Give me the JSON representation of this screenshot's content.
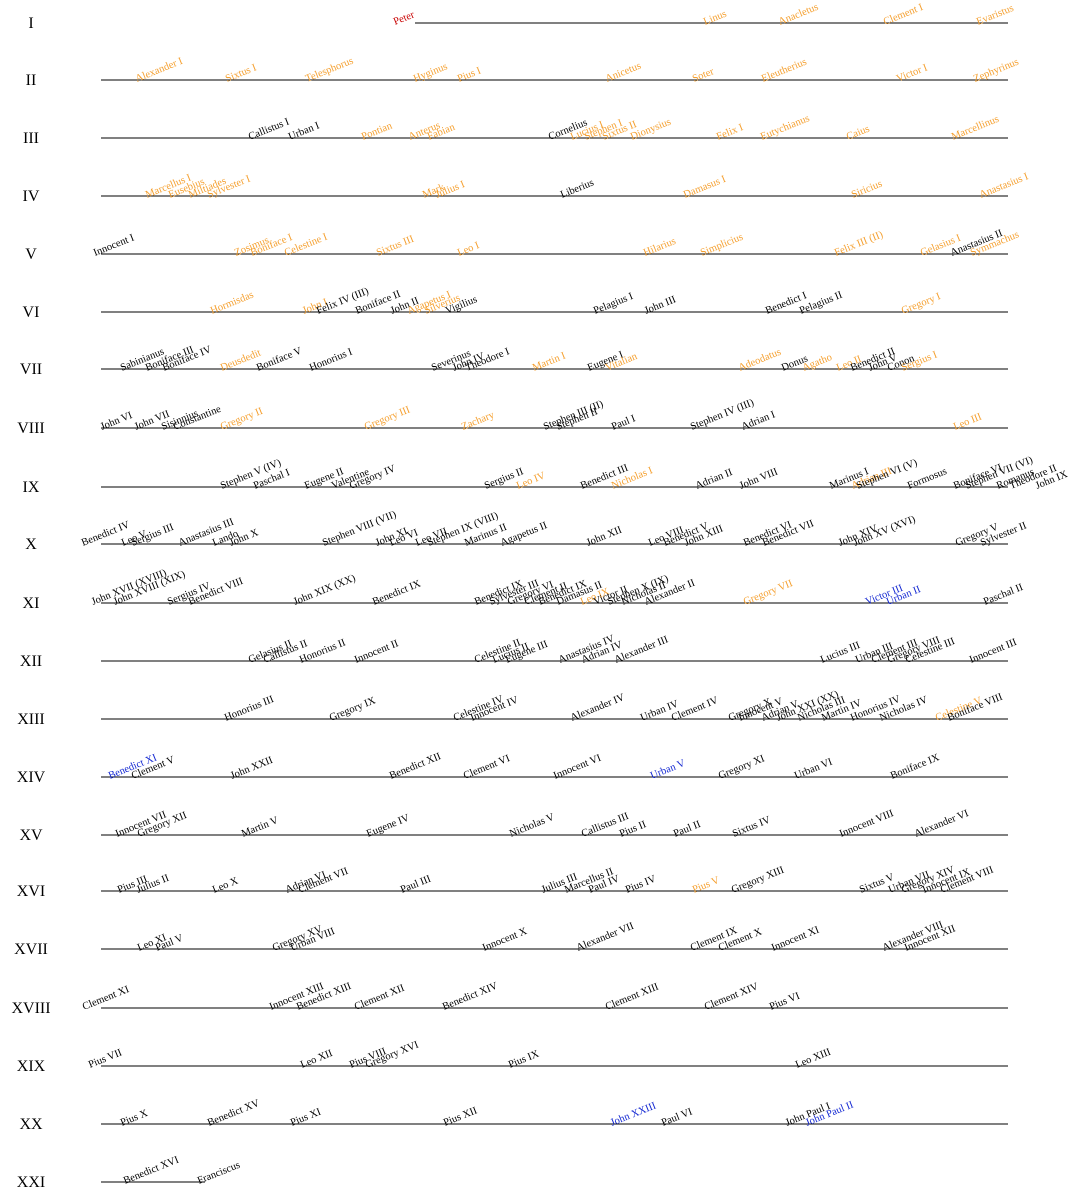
{
  "colors": {
    "default": "#000000",
    "saint": "#f5a030",
    "blessed": "#1428d2",
    "first": "#c80000"
  },
  "rows": [
    {
      "label": "I",
      "popes": [
        [
          "Peter",
          "first"
        ],
        [
          "Linus",
          "saint"
        ],
        [
          "Anacletus",
          "saint"
        ],
        [
          "Clement I",
          "saint"
        ],
        [
          "Evaristus",
          "saint"
        ]
      ]
    },
    {
      "label": "II",
      "popes": [
        [
          "Alexander I",
          "saint"
        ],
        [
          "Sixtus I",
          "saint"
        ],
        [
          "Telesphorus",
          "saint"
        ],
        [
          "Hyginus",
          "saint"
        ],
        [
          "Pius I",
          "saint"
        ],
        [
          "Anicetus",
          "saint"
        ],
        [
          "Soter",
          "saint"
        ],
        [
          "Eleutherius",
          "saint"
        ],
        [
          "Victor I",
          "saint"
        ],
        [
          "Zephyrinus",
          "saint"
        ]
      ]
    },
    {
      "label": "III",
      "popes": [
        [
          "Callistus I",
          "default"
        ],
        [
          "Urban I",
          "default"
        ],
        [
          "Pontian",
          "saint"
        ],
        [
          "Anterus",
          "saint"
        ],
        [
          "Fabian",
          "saint"
        ],
        [
          "Cornelius",
          "default"
        ],
        [
          "Lucius I",
          "saint"
        ],
        [
          "Stephen I",
          "saint"
        ],
        [
          "Sixtus II",
          "saint"
        ],
        [
          "Dionysius",
          "saint"
        ],
        [
          "Felix I",
          "saint"
        ],
        [
          "Eutychianus",
          "saint"
        ],
        [
          "Caius",
          "saint"
        ],
        [
          "Marcellinus",
          "saint"
        ]
      ]
    },
    {
      "label": "IV",
      "popes": [
        [
          "Marcellus I",
          "saint"
        ],
        [
          "Eusebius",
          "saint"
        ],
        [
          "Miltiades",
          "saint"
        ],
        [
          "Sylvester I",
          "saint"
        ],
        [
          "Mark",
          "saint"
        ],
        [
          "Julius I",
          "saint"
        ],
        [
          "Liberius",
          "default"
        ],
        [
          "Damasus I",
          "saint"
        ],
        [
          "Siricius",
          "saint"
        ],
        [
          "Anastasius I",
          "saint"
        ]
      ]
    },
    {
      "label": "V",
      "popes": [
        [
          "Innocent I",
          "default"
        ],
        [
          "Zosimus",
          "saint"
        ],
        [
          "Boniface I",
          "saint"
        ],
        [
          "Celestine I",
          "saint"
        ],
        [
          "Sixtus III",
          "saint"
        ],
        [
          "Leo I",
          "saint"
        ],
        [
          "Hilarius",
          "saint"
        ],
        [
          "Simplicius",
          "saint"
        ],
        [
          "Felix III (II)",
          "saint"
        ],
        [
          "Gelasius I",
          "saint"
        ],
        [
          "Anastasius II",
          "default"
        ],
        [
          "Symmachus",
          "saint"
        ]
      ]
    },
    {
      "label": "VI",
      "popes": [
        [
          "Hormisdas",
          "saint"
        ],
        [
          "John I",
          "saint"
        ],
        [
          "Felix IV (III)",
          "default"
        ],
        [
          "Boniface II",
          "default"
        ],
        [
          "John II",
          "default"
        ],
        [
          "Agapetus I",
          "saint"
        ],
        [
          "Silverius",
          "saint"
        ],
        [
          "Vigilius",
          "default"
        ],
        [
          "Pelagius I",
          "default"
        ],
        [
          "John III",
          "default"
        ],
        [
          "Benedict I",
          "default"
        ],
        [
          "Pelagius II",
          "default"
        ],
        [
          "Gregory I",
          "saint"
        ]
      ]
    },
    {
      "label": "VII",
      "popes": [
        [
          "Sabinianus",
          "default"
        ],
        [
          "Boniface III",
          "default"
        ],
        [
          "Boniface IV",
          "default"
        ],
        [
          "Deusdedit",
          "saint"
        ],
        [
          "Boniface V",
          "default"
        ],
        [
          "Honorius I",
          "default"
        ],
        [
          "Severinus",
          "default"
        ],
        [
          "John IV",
          "default"
        ],
        [
          "Theodore I",
          "default"
        ],
        [
          "Martin I",
          "saint"
        ],
        [
          "Eugene I",
          "default"
        ],
        [
          "Vitalian",
          "saint"
        ],
        [
          "Adeodatus",
          "saint"
        ],
        [
          "Donus",
          "default"
        ],
        [
          "Agatho",
          "saint"
        ],
        [
          "Leo II",
          "saint"
        ],
        [
          "Benedict II",
          "default"
        ],
        [
          "John V",
          "default"
        ],
        [
          "Conon",
          "default"
        ],
        [
          "Sergius I",
          "saint"
        ]
      ]
    },
    {
      "label": "VIII",
      "popes": [
        [
          "John VI",
          "default"
        ],
        [
          "John VII",
          "default"
        ],
        [
          "Sisinnius",
          "default"
        ],
        [
          "Constantine",
          "default"
        ],
        [
          "Gregory II",
          "saint"
        ],
        [
          "Gregory III",
          "saint"
        ],
        [
          "Zachary",
          "saint"
        ],
        [
          "Stephen III (II)",
          "default"
        ],
        [
          "Stephen II",
          "default"
        ],
        [
          "Paul I",
          "default"
        ],
        [
          "Stephen IV (III)",
          "default"
        ],
        [
          "Adrian I",
          "default"
        ],
        [
          "Leo III",
          "saint"
        ]
      ]
    },
    {
      "label": "IX",
      "popes": [
        [
          "Stephen V (IV)",
          "default"
        ],
        [
          "Paschal I",
          "default"
        ],
        [
          "Eugene II",
          "default"
        ],
        [
          "Valentine",
          "default"
        ],
        [
          "Gregory IV",
          "default"
        ],
        [
          "Sergius II",
          "default"
        ],
        [
          "Leo IV",
          "saint"
        ],
        [
          "Benedict III",
          "default"
        ],
        [
          "Nicholas I",
          "saint"
        ],
        [
          "Adrian II",
          "default"
        ],
        [
          "John VIII",
          "default"
        ],
        [
          "Marinus I",
          "default"
        ],
        [
          "Adrian III",
          "saint"
        ],
        [
          "Stephen VI (V)",
          "default"
        ],
        [
          "Formosus",
          "default"
        ],
        [
          "Boniface VI",
          "default"
        ],
        [
          "Stephen VII (VI)",
          "default"
        ],
        [
          "Romanus",
          "default"
        ],
        [
          "Theodore II",
          "default"
        ],
        [
          "John IX",
          "default"
        ]
      ]
    },
    {
      "label": "X",
      "popes": [
        [
          "Benedict IV",
          "default"
        ],
        [
          "Leo V",
          "default"
        ],
        [
          "Sergius III",
          "default"
        ],
        [
          "Anastasius III",
          "default"
        ],
        [
          "Lando",
          "default"
        ],
        [
          "John X",
          "default"
        ],
        [
          "Stephen VIII (VII)",
          "default"
        ],
        [
          "Leo VI",
          "default"
        ],
        [
          "John XI",
          "default"
        ],
        [
          "Leo VII",
          "default"
        ],
        [
          "Stephen IX (VIII)",
          "default"
        ],
        [
          "Marinus II",
          "default"
        ],
        [
          "Agapetus II",
          "default"
        ],
        [
          "John XII",
          "default"
        ],
        [
          "Leo VIII",
          "default"
        ],
        [
          "Benedict V",
          "default"
        ],
        [
          "John XIII",
          "default"
        ],
        [
          "Benedict VI",
          "default"
        ],
        [
          "Benedict VII",
          "default"
        ],
        [
          "John XIV",
          "default"
        ],
        [
          "John XV (XVI)",
          "default"
        ],
        [
          "Gregory V",
          "default"
        ],
        [
          "Sylvester II",
          "default"
        ]
      ]
    },
    {
      "label": "XI",
      "popes": [
        [
          "John XVII (XVIII)",
          "default"
        ],
        [
          "John XVIII (XIX)",
          "default"
        ],
        [
          "Sergius IV",
          "default"
        ],
        [
          "Benedict VIII",
          "default"
        ],
        [
          "John XIX (XX)",
          "default"
        ],
        [
          "Benedict IX",
          "default"
        ],
        [
          "Benedict IX",
          "default"
        ],
        [
          "Sylvester III",
          "default"
        ],
        [
          "Gregory VI",
          "default"
        ],
        [
          "Clement II",
          "default"
        ],
        [
          "Benedict IX",
          "default"
        ],
        [
          "Damasus II",
          "default"
        ],
        [
          "Leo IX",
          "saint"
        ],
        [
          "Victor II",
          "default"
        ],
        [
          "Stephen X (IX)",
          "default"
        ],
        [
          "Nicholas II",
          "default"
        ],
        [
          "Alexander II",
          "default"
        ],
        [
          "Gregory VII",
          "saint"
        ],
        [
          "Victor III",
          "blessed"
        ],
        [
          "Urban II",
          "blessed"
        ],
        [
          "Paschal II",
          "default"
        ]
      ]
    },
    {
      "label": "XII",
      "popes": [
        [
          "Gelasius II",
          "default"
        ],
        [
          "Callistus II",
          "default"
        ],
        [
          "Honorius II",
          "default"
        ],
        [
          "Innocent II",
          "default"
        ],
        [
          "Celestine II",
          "default"
        ],
        [
          "Lucius II",
          "default"
        ],
        [
          "Eugene III",
          "default"
        ],
        [
          "Anastasius IV",
          "default"
        ],
        [
          "Adrian IV",
          "default"
        ],
        [
          "Alexander III",
          "default"
        ],
        [
          "Lucius III",
          "default"
        ],
        [
          "Urban III",
          "default"
        ],
        [
          "Clement III",
          "default"
        ],
        [
          "Gregory VIII",
          "default"
        ],
        [
          "Celestine III",
          "default"
        ],
        [
          "Innocent III",
          "default"
        ]
      ]
    },
    {
      "label": "XIII",
      "popes": [
        [
          "Honorius III",
          "default"
        ],
        [
          "Gregory IX",
          "default"
        ],
        [
          "Celestine IV",
          "default"
        ],
        [
          "Innocent IV",
          "default"
        ],
        [
          "Alexander IV",
          "default"
        ],
        [
          "Urban IV",
          "default"
        ],
        [
          "Clement IV",
          "default"
        ],
        [
          "Gregory X",
          "default"
        ],
        [
          "Innocent V",
          "default"
        ],
        [
          "Adrian V",
          "default"
        ],
        [
          "John XXI (XX)",
          "default"
        ],
        [
          "Nicholas III",
          "default"
        ],
        [
          "Martin IV",
          "default"
        ],
        [
          "Honorius IV",
          "default"
        ],
        [
          "Nicholas IV",
          "default"
        ],
        [
          "Celestine V",
          "saint"
        ],
        [
          "Boniface VIII",
          "default"
        ]
      ]
    },
    {
      "label": "XIV",
      "popes": [
        [
          "Benedict XI",
          "blessed"
        ],
        [
          "Clement V",
          "default"
        ],
        [
          "John XXII",
          "default"
        ],
        [
          "Benedict XII",
          "default"
        ],
        [
          "Clement VI",
          "default"
        ],
        [
          "Innocent VI",
          "default"
        ],
        [
          "Urban V",
          "blessed"
        ],
        [
          "Gregory XI",
          "default"
        ],
        [
          "Urban VI",
          "default"
        ],
        [
          "Boniface IX",
          "default"
        ]
      ]
    },
    {
      "label": "XV",
      "popes": [
        [
          "Innocent VII",
          "default"
        ],
        [
          "Gregory XII",
          "default"
        ],
        [
          "Martin V",
          "default"
        ],
        [
          "Eugene IV",
          "default"
        ],
        [
          "Nicholas V",
          "default"
        ],
        [
          "Callistus III",
          "default"
        ],
        [
          "Pius II",
          "default"
        ],
        [
          "Paul II",
          "default"
        ],
        [
          "Sixtus IV",
          "default"
        ],
        [
          "Innocent VIII",
          "default"
        ],
        [
          "Alexander VI",
          "default"
        ]
      ]
    },
    {
      "label": "XVI",
      "popes": [
        [
          "Pius III",
          "default"
        ],
        [
          "Julius II",
          "default"
        ],
        [
          "Leo X",
          "default"
        ],
        [
          "Adrian VI",
          "default"
        ],
        [
          "Clement VII",
          "default"
        ],
        [
          "Paul III",
          "default"
        ],
        [
          "Julius III",
          "default"
        ],
        [
          "Marcellus II",
          "default"
        ],
        [
          "Paul IV",
          "default"
        ],
        [
          "Pius IV",
          "default"
        ],
        [
          "Pius V",
          "saint"
        ],
        [
          "Gregory XIII",
          "default"
        ],
        [
          "Sixtus V",
          "default"
        ],
        [
          "Urban VII",
          "default"
        ],
        [
          "Gregory XIV",
          "default"
        ],
        [
          "Innocent IX",
          "default"
        ],
        [
          "Clement VIII",
          "default"
        ]
      ]
    },
    {
      "label": "XVII",
      "popes": [
        [
          "Leo XI",
          "default"
        ],
        [
          "Paul V",
          "default"
        ],
        [
          "Gregory XV",
          "default"
        ],
        [
          "Urban VIII",
          "default"
        ],
        [
          "Innocent X",
          "default"
        ],
        [
          "Alexander VII",
          "default"
        ],
        [
          "Clement IX",
          "default"
        ],
        [
          "Clement X",
          "default"
        ],
        [
          "Innocent XI",
          "default"
        ],
        [
          "Alexander VIII",
          "default"
        ],
        [
          "Innocent XII",
          "default"
        ]
      ]
    },
    {
      "label": "XVIII",
      "popes": [
        [
          "Clement XI",
          "default"
        ],
        [
          "Innocent XIII",
          "default"
        ],
        [
          "Benedict XIII",
          "default"
        ],
        [
          "Clement XII",
          "default"
        ],
        [
          "Benedict XIV",
          "default"
        ],
        [
          "Clement XIII",
          "default"
        ],
        [
          "Clement XIV",
          "default"
        ],
        [
          "Pius VI",
          "default"
        ]
      ]
    },
    {
      "label": "XIX",
      "popes": [
        [
          "Pius VII",
          "default"
        ],
        [
          "Leo XII",
          "default"
        ],
        [
          "Pius VIII",
          "default"
        ],
        [
          "Gregory XVI",
          "default"
        ],
        [
          "Pius IX",
          "default"
        ],
        [
          "Leo XIII",
          "default"
        ]
      ]
    },
    {
      "label": "XX",
      "popes": [
        [
          "Pius X",
          "default"
        ],
        [
          "Benedict XV",
          "default"
        ],
        [
          "Pius XI",
          "default"
        ],
        [
          "Pius XII",
          "default"
        ],
        [
          "John XXIII",
          "blessed"
        ],
        [
          "Paul VI",
          "default"
        ],
        [
          "John Paul I",
          "default"
        ],
        [
          "John Paul II",
          "blessed"
        ]
      ]
    },
    {
      "label": "XXI",
      "popes": [
        [
          "Benedict XVI",
          "default"
        ],
        [
          "Franciscus",
          "default"
        ]
      ]
    }
  ]
}
